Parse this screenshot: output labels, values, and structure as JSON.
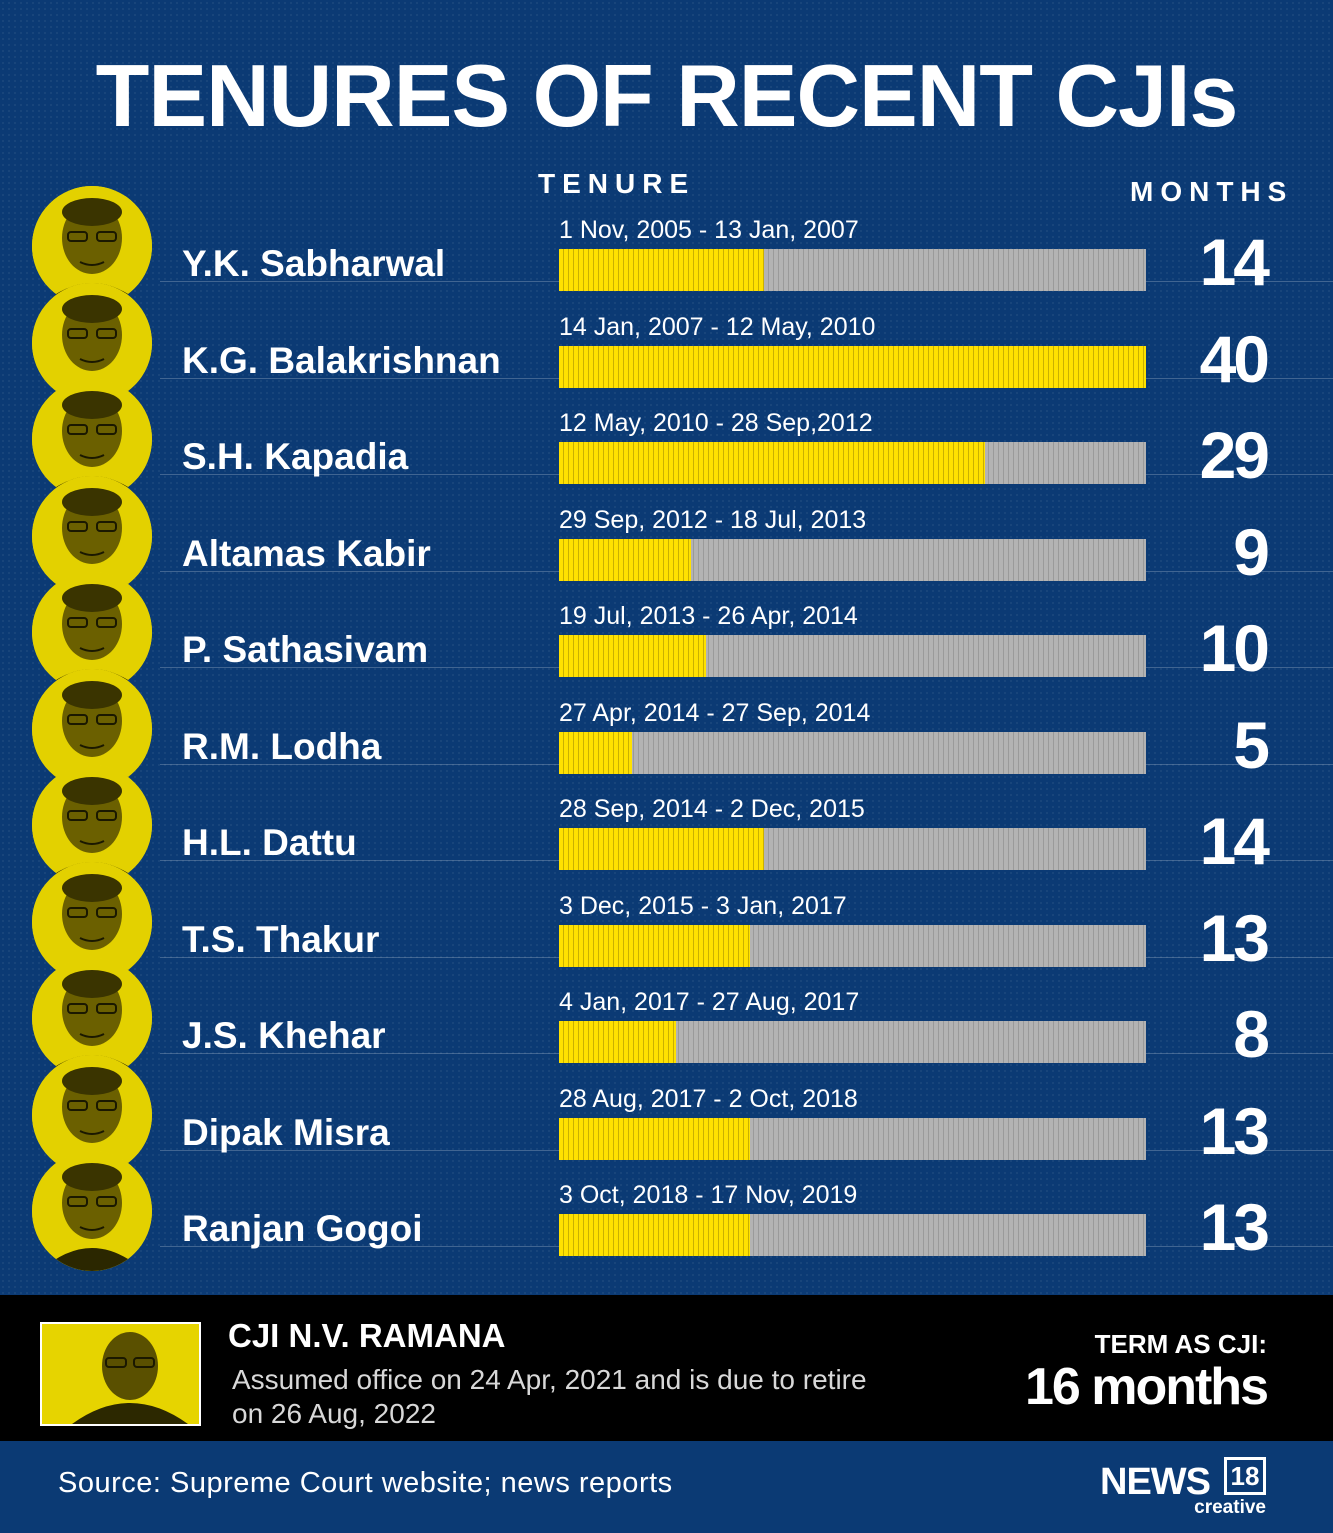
{
  "title": "TENURES OF RECENT CJIs",
  "headers": {
    "tenure": "TENURE",
    "months": "MONTHS"
  },
  "chart_data": {
    "type": "bar",
    "orientation": "horizontal",
    "categories": [
      "Y.K. Sabharwal",
      "K.G. Balakrishnan",
      "S.H. Kapadia",
      "Altamas Kabir",
      "P. Sathasivam",
      "R.M. Lodha",
      "H.L. Dattu",
      "T.S. Thakur",
      "J.S. Khehar",
      "Dipak Misra",
      "Ranjan Gogoi"
    ],
    "tenures": [
      "1 Nov, 2005 - 13 Jan, 2007",
      "14 Jan, 2007 - 12 May, 2010",
      "12 May, 2010 - 28 Sep,2012",
      "29 Sep, 2012 - 18 Jul, 2013",
      "19 Jul, 2013 - 26 Apr, 2014",
      "27 Apr, 2014 - 27 Sep, 2014",
      "28 Sep, 2014 - 2 Dec, 2015",
      "3 Dec, 2015 - 3 Jan, 2017",
      "4 Jan, 2017 - 27 Aug, 2017",
      "28 Aug, 2017 - 2 Oct, 2018",
      "3 Oct, 2018 - 17 Nov, 2019"
    ],
    "values": [
      14,
      40,
      29,
      9,
      10,
      5,
      14,
      13,
      8,
      13,
      13
    ],
    "xlim": [
      0,
      40
    ],
    "colors": {
      "fill": "#ffe100",
      "track": "#b3b3b3"
    }
  },
  "current": {
    "name": "CJI N.V. RAMANA",
    "description": "Assumed office on 24 Apr, 2021 and is due to retire on 26 Aug, 2022",
    "term_label": "TERM AS CJI:",
    "term_value": "16 months"
  },
  "source": "Source: Supreme Court website; news reports",
  "logo": {
    "brand": "NEWS",
    "number": "18",
    "sub": "creative"
  },
  "colors": {
    "background": "#0b3a74",
    "band": "#000000",
    "accent": "#ffe100"
  },
  "icons": {
    "portrait": "person-portrait-icon"
  }
}
